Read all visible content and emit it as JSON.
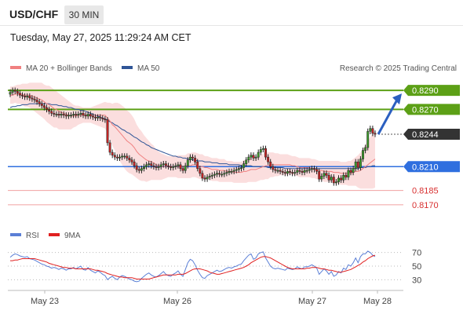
{
  "header": {
    "symbol": "USD/CHF",
    "timeframe": "30 MIN",
    "datetime": "Tuesday, May 27, 2025 11:29:24 AM CET"
  },
  "chart_data": {
    "type": "candlestick",
    "legend": [
      {
        "label": "MA 20 + Bollinger Bands",
        "color": "#f08080"
      },
      {
        "label": "MA 50",
        "color": "#2f5597"
      }
    ],
    "watermark": "Research © 2025 Trading Central",
    "ylim": [
      0.816,
      0.83
    ],
    "levels": [
      {
        "value": 0.829,
        "label": "0.8290",
        "color": "#5ca016",
        "type": "target"
      },
      {
        "value": 0.827,
        "label": "0.8270",
        "color": "#5ca016",
        "type": "target"
      },
      {
        "value": 0.8244,
        "label": "0.8244",
        "color": "#333333",
        "type": "last-price"
      },
      {
        "value": 0.821,
        "label": "0.8210",
        "color": "#2f6fdf",
        "type": "pivot"
      },
      {
        "value": 0.8185,
        "label": "0.8185",
        "color": "#d83030",
        "type": "support"
      },
      {
        "value": 0.817,
        "label": "0.8170",
        "color": "#d83030",
        "type": "support"
      }
    ],
    "x_labels": [
      "May 23",
      "May 26",
      "May 27",
      "May 28"
    ],
    "close_series": [
      0.8288,
      0.829,
      0.8289,
      0.8287,
      0.8285,
      0.8284,
      0.8283,
      0.8284,
      0.8282,
      0.8281,
      0.828,
      0.8278,
      0.8276,
      0.8274,
      0.8272,
      0.827,
      0.8268,
      0.8266,
      0.8265,
      0.8265,
      0.8264,
      0.8265,
      0.8264,
      0.8263,
      0.8264,
      0.8264,
      0.8265,
      0.8264,
      0.8265,
      0.8266,
      0.8264,
      0.8263,
      0.8265,
      0.8263,
      0.8262,
      0.8261,
      0.8262,
      0.8261,
      0.826,
      0.8259,
      0.8235,
      0.8225,
      0.8222,
      0.822,
      0.8219,
      0.822,
      0.8221,
      0.8221,
      0.8219,
      0.8217,
      0.8215,
      0.8211,
      0.8207,
      0.8206,
      0.8208,
      0.821,
      0.8212,
      0.8213,
      0.8211,
      0.821,
      0.8209,
      0.821,
      0.8212,
      0.8213,
      0.8211,
      0.821,
      0.8209,
      0.821,
      0.8211,
      0.8212,
      0.8208,
      0.8206,
      0.8211,
      0.8217,
      0.822,
      0.8219,
      0.8215,
      0.8208,
      0.8203,
      0.8198,
      0.8197,
      0.8199,
      0.82,
      0.8201,
      0.8202,
      0.8203,
      0.8202,
      0.8202,
      0.8203,
      0.8204,
      0.8205,
      0.8205,
      0.8206,
      0.8207,
      0.8208,
      0.8209,
      0.8213,
      0.8217,
      0.822,
      0.8222,
      0.8219,
      0.822,
      0.8225,
      0.8228,
      0.8229,
      0.822,
      0.8215,
      0.821,
      0.8207,
      0.8206,
      0.8206,
      0.8205,
      0.8204,
      0.8203,
      0.8205,
      0.8204,
      0.8203,
      0.8204,
      0.8206,
      0.8205,
      0.8204,
      0.8206,
      0.8206,
      0.8207,
      0.8208,
      0.8207,
      0.8205,
      0.8197,
      0.82,
      0.8203,
      0.8201,
      0.8196,
      0.8199,
      0.8193,
      0.8194,
      0.8198,
      0.8196,
      0.8201,
      0.8199,
      0.8206,
      0.8204,
      0.8208,
      0.8215,
      0.8209,
      0.8218,
      0.8227,
      0.823,
      0.8247,
      0.825,
      0.8245,
      0.8244
    ],
    "ma20_series": [
      0.8285,
      0.8285,
      0.8286,
      0.8286,
      0.8286,
      0.8286,
      0.8285,
      0.8285,
      0.8285,
      0.8284,
      0.8283,
      0.8282,
      0.8281,
      0.828,
      0.8278,
      0.8276,
      0.8275,
      0.8273,
      0.8271,
      0.827,
      0.8268,
      0.8267,
      0.8266,
      0.8265,
      0.8264,
      0.8263,
      0.8263,
      0.8263,
      0.8264,
      0.8264,
      0.8264,
      0.8264,
      0.8264,
      0.8264,
      0.8264,
      0.8264,
      0.8264,
      0.8264,
      0.8264,
      0.8264,
      0.8261,
      0.8258,
      0.8254,
      0.8252,
      0.8249,
      0.8246,
      0.8243,
      0.824,
      0.8237,
      0.8235,
      0.8233,
      0.823,
      0.8226,
      0.8223,
      0.8221,
      0.8219,
      0.8217,
      0.8216,
      0.8215,
      0.8214,
      0.8212,
      0.8211,
      0.821,
      0.821,
      0.821,
      0.821,
      0.821,
      0.821,
      0.821,
      0.821,
      0.821,
      0.821,
      0.821,
      0.8211,
      0.8211,
      0.8212,
      0.8212,
      0.8211,
      0.821,
      0.821,
      0.8209,
      0.8209,
      0.8208,
      0.8207,
      0.8207,
      0.8207,
      0.8206,
      0.8206,
      0.8206,
      0.8205,
      0.8205,
      0.8205,
      0.8204,
      0.8204,
      0.8204,
      0.8204,
      0.8205,
      0.8205,
      0.8206,
      0.8207,
      0.8207,
      0.8207,
      0.8208,
      0.8209,
      0.821,
      0.8211,
      0.8211,
      0.8212,
      0.8212,
      0.8212,
      0.8212,
      0.8212,
      0.8212,
      0.8212,
      0.8212,
      0.8212,
      0.8211,
      0.8211,
      0.821,
      0.8209,
      0.8209,
      0.8209,
      0.8209,
      0.8209,
      0.8208,
      0.8208,
      0.8207,
      0.8206,
      0.8206,
      0.8205,
      0.8205,
      0.8205,
      0.8205,
      0.8204,
      0.8204,
      0.8204,
      0.8203,
      0.8203,
      0.8203,
      0.8203,
      0.8203,
      0.8204,
      0.8205,
      0.8205,
      0.8206,
      0.8208,
      0.821,
      0.8212,
      0.8214,
      0.8216,
      0.8218
    ],
    "bb_width_series": [
      0.0009,
      0.0009,
      0.0009,
      0.001,
      0.001,
      0.0011,
      0.0012,
      0.0012,
      0.0013,
      0.0014,
      0.0015,
      0.0016,
      0.0017,
      0.0018,
      0.0018,
      0.0019,
      0.002,
      0.002,
      0.002,
      0.0019,
      0.0019,
      0.0018,
      0.0017,
      0.0016,
      0.0015,
      0.0014,
      0.0012,
      0.0011,
      0.001,
      0.0009,
      0.0008,
      0.0008,
      0.0008,
      0.0008,
      0.0009,
      0.001,
      0.0011,
      0.0012,
      0.0013,
      0.0014,
      0.0016,
      0.0019,
      0.0022,
      0.0025,
      0.0028,
      0.003,
      0.0031,
      0.0032,
      0.0032,
      0.0032,
      0.0031,
      0.003,
      0.0028,
      0.0027,
      0.0026,
      0.0024,
      0.0023,
      0.0021,
      0.0019,
      0.0018,
      0.0016,
      0.0015,
      0.0014,
      0.0013,
      0.0012,
      0.0011,
      0.0011,
      0.0011,
      0.0011,
      0.0012,
      0.0012,
      0.0012,
      0.0012,
      0.0013,
      0.0013,
      0.0013,
      0.0013,
      0.0013,
      0.0013,
      0.0013,
      0.0012,
      0.0012,
      0.0012,
      0.0012,
      0.0012,
      0.0012,
      0.0012,
      0.0012,
      0.0012,
      0.0011,
      0.0011,
      0.0011,
      0.0011,
      0.0011,
      0.0011,
      0.0011,
      0.0012,
      0.0012,
      0.0012,
      0.0013,
      0.0013,
      0.0013,
      0.0013,
      0.0013,
      0.0014,
      0.0014,
      0.0014,
      0.0013,
      0.0013,
      0.0012,
      0.0012,
      0.0011,
      0.0011,
      0.0011,
      0.0011,
      0.001,
      0.001,
      0.001,
      0.001,
      0.001,
      0.001,
      0.001,
      0.001,
      0.001,
      0.001,
      0.001,
      0.001,
      0.001,
      0.001,
      0.0011,
      0.0011,
      0.0011,
      0.0011,
      0.0012,
      0.0012,
      0.0012,
      0.0012,
      0.0012,
      0.0012,
      0.0013,
      0.0013,
      0.0014,
      0.0015,
      0.0017,
      0.0019,
      0.0021,
      0.0023,
      0.0025,
      0.0027,
      0.0029,
      0.003
    ],
    "ma50_series": [
      0.8272,
      0.8273,
      0.8273,
      0.8274,
      0.8274,
      0.8275,
      0.8275,
      0.8275,
      0.8276,
      0.8276,
      0.8276,
      0.8276,
      0.8276,
      0.8276,
      0.8276,
      0.8276,
      0.8276,
      0.8275,
      0.8275,
      0.8275,
      0.8274,
      0.8274,
      0.8273,
      0.8273,
      0.8272,
      0.8272,
      0.8271,
      0.827,
      0.827,
      0.8269,
      0.8269,
      0.8268,
      0.8267,
      0.8266,
      0.8265,
      0.8264,
      0.8263,
      0.8262,
      0.8261,
      0.826,
      0.8259,
      0.8257,
      0.8256,
      0.8254,
      0.8253,
      0.8251,
      0.8249,
      0.8248,
      0.8246,
      0.8245,
      0.8243,
      0.8241,
      0.824,
      0.8238,
      0.8236,
      0.8235,
      0.8233,
      0.8232,
      0.823,
      0.8229,
      0.8228,
      0.8227,
      0.8226,
      0.8225,
      0.8224,
      0.8223,
      0.8222,
      0.8221,
      0.8221,
      0.822,
      0.822,
      0.8219,
      0.8219,
      0.8218,
      0.8218,
      0.8217,
      0.8217,
      0.8216,
      0.8216,
      0.8216,
      0.8215,
      0.8215,
      0.8215,
      0.8214,
      0.8214,
      0.8214,
      0.8213,
      0.8213,
      0.8213,
      0.8213,
      0.8212,
      0.8212,
      0.8212,
      0.8212,
      0.8212,
      0.8211,
      0.8211,
      0.8211,
      0.8211,
      0.8211,
      0.821,
      0.821,
      0.821,
      0.821,
      0.821,
      0.821,
      0.8209,
      0.8209,
      0.8209,
      0.8209,
      0.8209,
      0.8209,
      0.8209,
      0.8208,
      0.8208,
      0.8208,
      0.8208,
      0.8208,
      0.8208,
      0.8208,
      0.8208,
      0.8208,
      0.8208,
      0.8208,
      0.8208,
      0.8208,
      0.8208,
      0.8208,
      0.8208,
      0.8208,
      0.8208,
      0.8208,
      0.8208,
      0.8208,
      0.8208,
      0.8208,
      0.8208,
      0.8208,
      0.8208,
      0.8208,
      0.8208,
      0.8208,
      0.8208,
      0.8208,
      0.8209,
      0.8209,
      0.8209,
      0.821,
      0.821,
      0.8211,
      0.8211
    ],
    "rsi": {
      "legend": [
        {
          "label": "RSI",
          "color": "#5b7fd6"
        },
        {
          "label": "9MA",
          "color": "#e02020"
        }
      ],
      "ylim": [
        20,
        80
      ],
      "ticks": [
        70,
        50,
        30
      ],
      "values": [
        63,
        66,
        68,
        67,
        65,
        64,
        63,
        64,
        61,
        60,
        59,
        57,
        55,
        53,
        52,
        50,
        49,
        47,
        48,
        47,
        45,
        47,
        46,
        44,
        46,
        46,
        48,
        46,
        48,
        50,
        45,
        44,
        48,
        44,
        42,
        40,
        43,
        41,
        38,
        36,
        30,
        33,
        35,
        32,
        30,
        34,
        36,
        35,
        33,
        31,
        30,
        28,
        27,
        28,
        32,
        35,
        38,
        40,
        37,
        35,
        34,
        36,
        39,
        42,
        38,
        36,
        35,
        38,
        40,
        43,
        38,
        35,
        45,
        55,
        60,
        58,
        52,
        44,
        38,
        33,
        32,
        36,
        38,
        40,
        42,
        44,
        42,
        43,
        45,
        47,
        48,
        47,
        49,
        50,
        52,
        53,
        58,
        62,
        66,
        68,
        60,
        62,
        68,
        70,
        71,
        62,
        56,
        50,
        47,
        46,
        47,
        46,
        45,
        44,
        47,
        46,
        45,
        46,
        49,
        47,
        46,
        49,
        49,
        50,
        52,
        50,
        47,
        38,
        42,
        46,
        43,
        38,
        42,
        35,
        37,
        42,
        40,
        47,
        45,
        52,
        50,
        55,
        62,
        55,
        64,
        68,
        68,
        72,
        70,
        66,
        64
      ],
      "ma9": [
        58,
        58,
        59,
        59,
        60,
        61,
        61,
        61,
        61,
        61,
        61,
        60,
        59,
        58,
        57,
        56,
        54,
        53,
        52,
        51,
        50,
        49,
        48,
        48,
        47,
        47,
        47,
        46,
        46,
        46,
        46,
        46,
        46,
        46,
        45,
        44,
        44,
        43,
        42,
        41,
        39,
        38,
        37,
        36,
        35,
        34,
        34,
        33,
        33,
        33,
        33,
        32,
        31,
        31,
        31,
        31,
        31,
        31,
        32,
        33,
        34,
        35,
        36,
        37,
        37,
        37,
        37,
        37,
        37,
        38,
        38,
        38,
        39,
        41,
        43,
        45,
        46,
        46,
        46,
        45,
        44,
        43,
        41,
        40,
        39,
        38,
        38,
        39,
        40,
        41,
        42,
        43,
        44,
        45,
        46,
        47,
        48,
        50,
        52,
        55,
        57,
        59,
        61,
        63,
        64,
        64,
        63,
        62,
        60,
        58,
        56,
        54,
        52,
        50,
        48,
        47,
        46,
        46,
        46,
        46,
        46,
        46,
        47,
        47,
        48,
        48,
        48,
        47,
        46,
        46,
        45,
        44,
        44,
        43,
        42,
        41,
        41,
        42,
        43,
        44,
        45,
        47,
        49,
        51,
        53,
        56,
        58,
        61,
        63,
        65,
        66
      ]
    }
  }
}
